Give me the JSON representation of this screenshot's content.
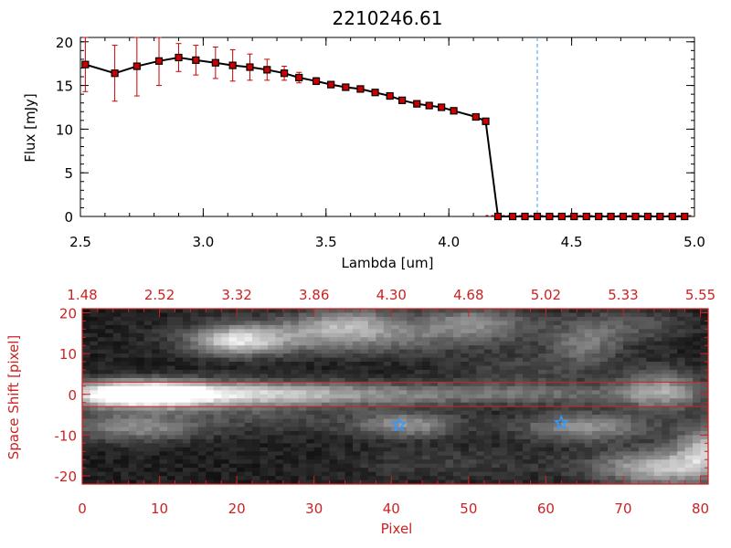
{
  "colors": {
    "data_line": "#000000",
    "marker_fill": "#cc0000",
    "error_bar": "#cc0000",
    "reference_line": "#4499ee",
    "star_marker": "#3399ff",
    "axis_top": "#000000",
    "axis_bottom": "#cc2222",
    "image_background": "#000000"
  },
  "chart_data": [
    {
      "type": "line",
      "title": "2210246.61",
      "xlabel": "Lambda [um]",
      "ylabel": "Flux [mJy]",
      "xlim": [
        2.5,
        5.0
      ],
      "ylim": [
        0,
        20.5
      ],
      "x_ticks": [
        "2.5",
        "3.0",
        "3.5",
        "4.0",
        "4.5",
        "5.0"
      ],
      "y_ticks": [
        "0",
        "5",
        "10",
        "15",
        "20"
      ],
      "vertical_reference_x": 4.36,
      "series": [
        {
          "marker": "square",
          "x": [
            2.52,
            2.64,
            2.73,
            2.82,
            2.9,
            2.97,
            3.05,
            3.12,
            3.19,
            3.26,
            3.33,
            3.39,
            3.46,
            3.52,
            3.58,
            3.64,
            3.7,
            3.76,
            3.81,
            3.87,
            3.92,
            3.97,
            4.02,
            4.11,
            4.15,
            4.2,
            4.26,
            4.31,
            4.36,
            4.41,
            4.46,
            4.51,
            4.56,
            4.61,
            4.66,
            4.71,
            4.76,
            4.81,
            4.86,
            4.91,
            4.96
          ],
          "y": [
            17.4,
            16.4,
            17.2,
            17.8,
            18.2,
            17.9,
            17.6,
            17.3,
            17.1,
            16.8,
            16.4,
            15.9,
            15.5,
            15.1,
            14.8,
            14.6,
            14.2,
            13.8,
            13.3,
            12.9,
            12.7,
            12.5,
            12.1,
            11.4,
            10.9,
            0,
            0,
            0,
            0,
            0,
            0,
            0,
            0,
            0,
            0,
            0,
            0,
            0,
            0,
            0,
            0
          ],
          "yerr": [
            3.1,
            3.2,
            3.4,
            2.8,
            1.6,
            1.7,
            1.8,
            1.8,
            1.5,
            1.2,
            0.8,
            0.6,
            0.4,
            0.3,
            0.3,
            0.3,
            0.3,
            0.3,
            0.3,
            0.3,
            0.3,
            0.3,
            0.3,
            0.3,
            0.3,
            0,
            0,
            0,
            0,
            0,
            0,
            0,
            0,
            0,
            0,
            0,
            0,
            0,
            0,
            0,
            0
          ]
        }
      ]
    },
    {
      "type": "heatmap",
      "xlabel": "Pixel",
      "ylabel": "Space Shift [pixel]",
      "xlim": [
        0,
        81
      ],
      "ylim": [
        -22,
        21
      ],
      "x_ticks": [
        "0",
        "10",
        "20",
        "30",
        "40",
        "50",
        "60",
        "70",
        "80"
      ],
      "y_ticks": [
        "-20",
        "-10",
        "0",
        "10",
        "20"
      ],
      "top_axis_ticks": [
        "1.48",
        "2.52",
        "3.32",
        "3.86",
        "4.30",
        "4.68",
        "5.02",
        "5.33",
        "5.55"
      ],
      "aperture_lines_y": [
        3,
        -3
      ],
      "stars": [
        {
          "x": 41,
          "y": -7.5
        },
        {
          "x": 62,
          "y": -7
        }
      ],
      "blobs": [
        {
          "x": 7,
          "y": 0,
          "sx": 6,
          "sy": 2.2,
          "amp": 1.0
        },
        {
          "x": 18,
          "y": 0,
          "sx": 12,
          "sy": 2.3,
          "amp": 0.55
        },
        {
          "x": 38,
          "y": 0,
          "sx": 16,
          "sy": 2.0,
          "amp": 0.3
        },
        {
          "x": 62,
          "y": 0,
          "sx": 12,
          "sy": 1.8,
          "amp": 0.18
        },
        {
          "x": 75,
          "y": 1,
          "sx": 4,
          "sy": 3.5,
          "amp": 0.45
        },
        {
          "x": 7,
          "y": -8,
          "sx": 6,
          "sy": 2.5,
          "amp": 0.42
        },
        {
          "x": 20,
          "y": 13,
          "sx": 4,
          "sy": 2.5,
          "amp": 0.55
        },
        {
          "x": 30,
          "y": 14,
          "sx": 11,
          "sy": 3,
          "amp": 0.32
        },
        {
          "x": 45,
          "y": 16,
          "sx": 14,
          "sy": 3.5,
          "amp": 0.22
        },
        {
          "x": 34,
          "y": 18,
          "sx": 4,
          "sy": 2.5,
          "amp": 0.3
        },
        {
          "x": 51,
          "y": 18,
          "sx": 4,
          "sy": 2.5,
          "amp": 0.25
        },
        {
          "x": 65,
          "y": 12,
          "sx": 3,
          "sy": 3,
          "amp": 0.3
        },
        {
          "x": 71,
          "y": 17,
          "sx": 5,
          "sy": 3,
          "amp": 0.2
        },
        {
          "x": 42,
          "y": -7.5,
          "sx": 5,
          "sy": 2.2,
          "amp": 0.45
        },
        {
          "x": 65,
          "y": -8,
          "sx": 6,
          "sy": 2.5,
          "amp": 0.45
        },
        {
          "x": 75,
          "y": -18,
          "sx": 6,
          "sy": 3,
          "amp": 0.62
        },
        {
          "x": 81,
          "y": -13,
          "sx": 3,
          "sy": 4,
          "amp": 0.55
        },
        {
          "x": 58,
          "y": 6,
          "sx": 8,
          "sy": 3,
          "amp": 0.15
        },
        {
          "x": 24,
          "y": -6,
          "sx": 8,
          "sy": 2.5,
          "amp": 0.15
        },
        {
          "x": 48,
          "y": -17,
          "sx": 10,
          "sy": 3,
          "amp": 0.12
        }
      ]
    }
  ]
}
